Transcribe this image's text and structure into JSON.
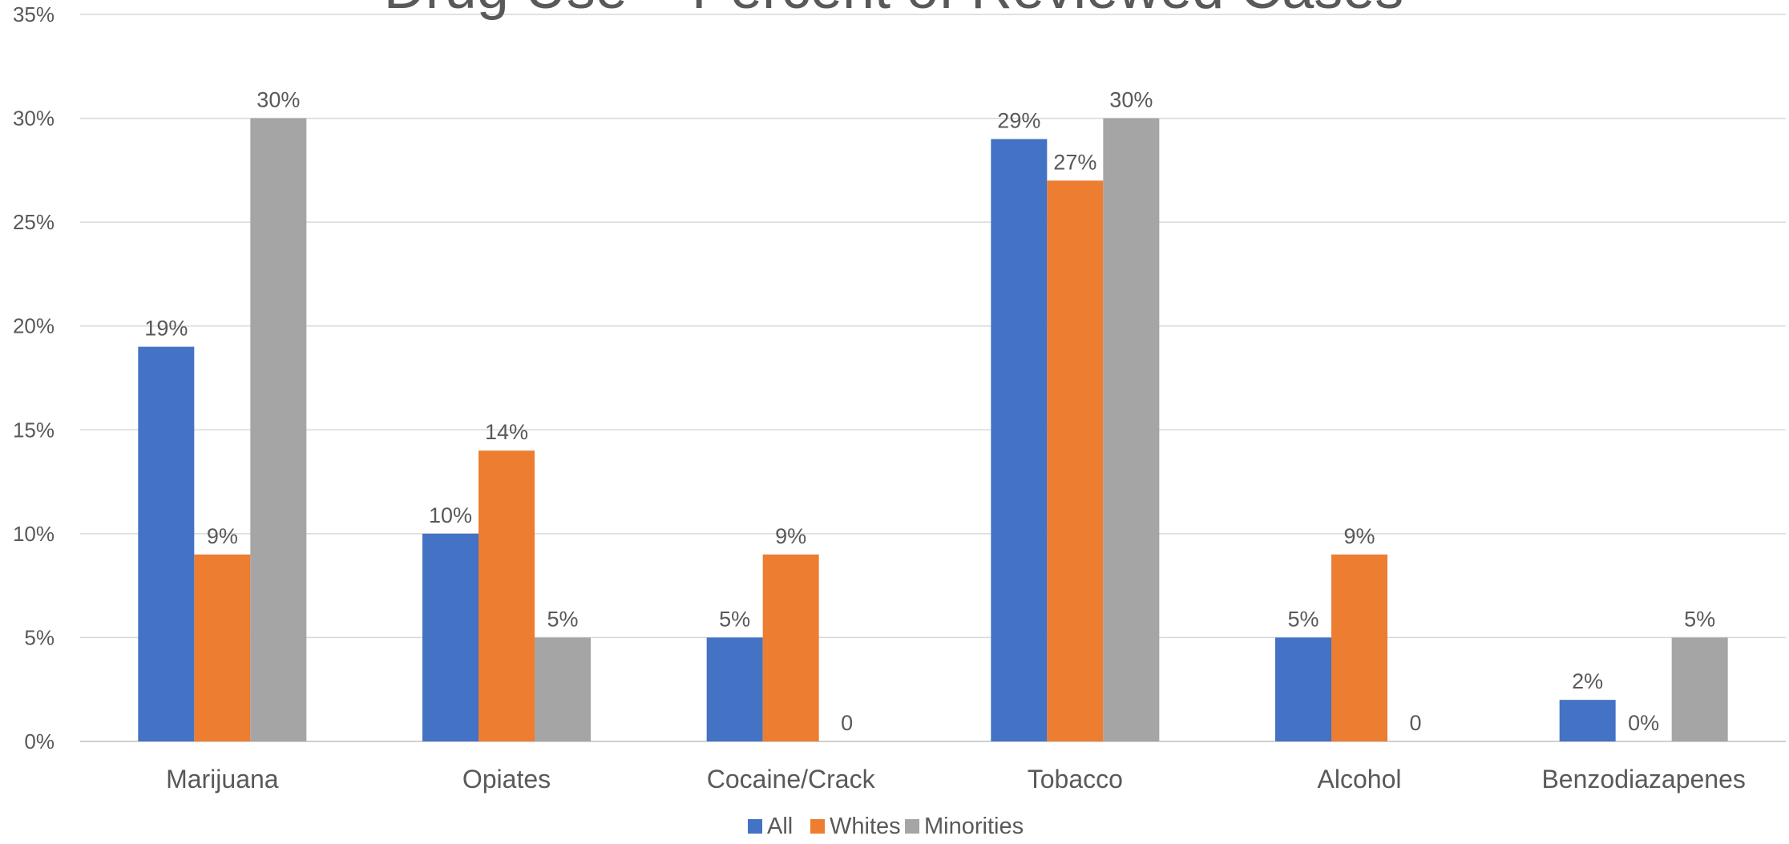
{
  "chart_data": {
    "type": "bar",
    "title": "Drug Use – Percent of Reviewed Cases",
    "categories": [
      "Marijuana",
      "Opiates",
      "Cocaine/Crack",
      "Tobacco",
      "Alcohol",
      "Benzodiazapenes"
    ],
    "series": [
      {
        "name": "All",
        "color": "#4472C4",
        "values": [
          19,
          10,
          5,
          29,
          5,
          2
        ],
        "labels": [
          "19%",
          "10%",
          "5%",
          "29%",
          "5%",
          "2%"
        ]
      },
      {
        "name": "Whites",
        "color": "#ED7D31",
        "values": [
          9,
          14,
          9,
          27,
          9,
          0
        ],
        "labels": [
          "9%",
          "14%",
          "9%",
          "27%",
          "9%",
          "0%"
        ]
      },
      {
        "name": "Minorities",
        "color": "#A5A5A5",
        "values": [
          30,
          5,
          0,
          30,
          0,
          5
        ],
        "labels": [
          "30%",
          "5%",
          "0",
          "30%",
          "0",
          "5%"
        ]
      }
    ],
    "ylim": [
      0,
      35
    ],
    "yticks": [
      0,
      5,
      10,
      15,
      20,
      25,
      30,
      35
    ],
    "ytick_labels": [
      "0%",
      "5%",
      "10%",
      "15%",
      "20%",
      "25%",
      "30%",
      "35%"
    ],
    "xlabel": "",
    "ylabel": "",
    "grid": true,
    "legend_position": "bottom"
  }
}
